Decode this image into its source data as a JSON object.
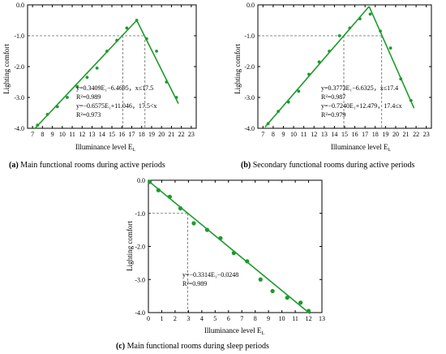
{
  "colors": {
    "series": "#1e9a2c",
    "axis": "#000000",
    "guide": "#666666"
  },
  "chart_data": [
    {
      "type": "scatter",
      "panel_label": "(a)",
      "caption": "Main functional rooms during active periods",
      "xlabel": "Illuminance level E",
      "xlabel_sub": "L",
      "ylabel": "Lighting comfort",
      "xlim": [
        6.5,
        23.5
      ],
      "ylim": [
        -4.0,
        0.0
      ],
      "xticks": [
        "7",
        "8",
        "9",
        "10",
        "11",
        "12",
        "13",
        "14",
        "15",
        "16",
        "17",
        "18",
        "19",
        "20",
        "21",
        "22",
        "23"
      ],
      "yticks": [
        "0.0",
        "-1.0",
        "-2.0",
        "-3.0",
        "-4.0"
      ],
      "ytick_values": [
        0,
        -1,
        -2,
        -3,
        -4
      ],
      "points": [
        {
          "x": 7.5,
          "y": -3.9
        },
        {
          "x": 8.5,
          "y": -3.55
        },
        {
          "x": 9.5,
          "y": -3.3
        },
        {
          "x": 10.5,
          "y": -3.0
        },
        {
          "x": 11.5,
          "y": -2.65
        },
        {
          "x": 12.5,
          "y": -2.35
        },
        {
          "x": 13.5,
          "y": -2.05
        },
        {
          "x": 14.5,
          "y": -1.5
        },
        {
          "x": 15.5,
          "y": -1.15
        },
        {
          "x": 16.5,
          "y": -0.75
        },
        {
          "x": 17.5,
          "y": -0.5
        },
        {
          "x": 18.5,
          "y": -1.1
        },
        {
          "x": 19.5,
          "y": -1.5
        },
        {
          "x": 20.5,
          "y": -2.5
        },
        {
          "x": 21.5,
          "y": -3.0
        }
      ],
      "fit_segments": [
        {
          "x1": 7.2,
          "y1": -4.02,
          "x2": 17.5,
          "y2": -0.5
        },
        {
          "x1": 17.5,
          "y1": -0.5,
          "x2": 21.7,
          "y2": -3.2
        }
      ],
      "guide_y": -1.0,
      "guide_x": [
        16.09,
        18.33
      ],
      "equations": [
        "y=0.3409E₁−6.4695，x≤17.5",
        "R²=0.989",
        "y=−0.6575E₁+11.046，17.5<x",
        "R²=0.973"
      ]
    },
    {
      "type": "scatter",
      "panel_label": "(b)",
      "caption": "Secondary functional rooms during active periods",
      "xlabel": "Illuminance level E",
      "xlabel_sub": "L",
      "ylabel": "Lighting comfort",
      "xlim": [
        6.5,
        23.5
      ],
      "ylim": [
        -4.0,
        0.0
      ],
      "xticks": [
        "7",
        "8",
        "9",
        "10",
        "11",
        "12",
        "13",
        "14",
        "15",
        "16",
        "17",
        "18",
        "19",
        "20",
        "21",
        "22",
        "23"
      ],
      "yticks": [
        "0.0",
        "-1.0",
        "-2.0",
        "-3.0",
        "-4.0"
      ],
      "ytick_values": [
        0,
        -1,
        -2,
        -3,
        -4
      ],
      "points": [
        {
          "x": 7.5,
          "y": -3.85
        },
        {
          "x": 8.5,
          "y": -3.45
        },
        {
          "x": 9.5,
          "y": -3.15
        },
        {
          "x": 10.5,
          "y": -2.8
        },
        {
          "x": 11.5,
          "y": -2.25
        },
        {
          "x": 12.5,
          "y": -1.85
        },
        {
          "x": 13.5,
          "y": -1.5
        },
        {
          "x": 14.5,
          "y": -1.0
        },
        {
          "x": 15.5,
          "y": -0.75
        },
        {
          "x": 16.5,
          "y": -0.45
        },
        {
          "x": 17.5,
          "y": -0.3
        },
        {
          "x": 18.5,
          "y": -0.85
        },
        {
          "x": 19.5,
          "y": -1.4
        },
        {
          "x": 20.5,
          "y": -2.4
        },
        {
          "x": 21.5,
          "y": -3.1
        }
      ],
      "fit_segments": [
        {
          "x1": 7.2,
          "y1": -3.96,
          "x2": 17.4,
          "y2": -0.05
        },
        {
          "x1": 17.4,
          "y1": -0.05,
          "x2": 21.8,
          "y2": -3.35
        }
      ],
      "guide_y": -1.0,
      "guide_x": [
        14.92,
        18.63
      ],
      "equations": [
        "y=0.3773E₁−6.6325，x≤17.4",
        "R²=0.987",
        "y=−0.7240E₁+12.479，17.4≤x",
        "R²=0.979"
      ]
    },
    {
      "type": "scatter",
      "panel_label": "(c)",
      "caption": "Main functional rooms during sleep periods",
      "xlabel": "Illuminance level E",
      "xlabel_sub": "L",
      "ylabel": "Lighting comfort",
      "xlim": [
        0,
        13
      ],
      "ylim": [
        -4.0,
        0.0
      ],
      "xticks": [
        "0",
        "1",
        "2",
        "3",
        "4",
        "5",
        "6",
        "7",
        "8",
        "9",
        "10",
        "11",
        "12",
        "13"
      ],
      "yticks": [
        "0.0",
        "-1.0",
        "-2.0",
        "-3.0",
        "-4.0"
      ],
      "ytick_values": [
        0,
        -1,
        -2,
        -3,
        -4
      ],
      "points": [
        {
          "x": 0.1,
          "y": -0.05
        },
        {
          "x": 0.75,
          "y": -0.3
        },
        {
          "x": 1.6,
          "y": -0.5
        },
        {
          "x": 2.4,
          "y": -0.85
        },
        {
          "x": 3.4,
          "y": -1.3
        },
        {
          "x": 4.4,
          "y": -1.5
        },
        {
          "x": 5.4,
          "y": -1.75
        },
        {
          "x": 6.4,
          "y": -2.2
        },
        {
          "x": 7.4,
          "y": -2.45
        },
        {
          "x": 8.4,
          "y": -3.0
        },
        {
          "x": 9.3,
          "y": -3.35
        },
        {
          "x": 10.4,
          "y": -3.55
        },
        {
          "x": 11.4,
          "y": -3.7
        },
        {
          "x": 12.0,
          "y": -3.95
        }
      ],
      "fit_segments": [
        {
          "x1": 0.0,
          "y1": -0.02,
          "x2": 12.1,
          "y2": -4.03
        }
      ],
      "guide_y": -1.0,
      "guide_x": [
        2.94
      ],
      "equations": [
        "y=−0.3314E₁−0.0248",
        "R²=0.989"
      ]
    }
  ]
}
